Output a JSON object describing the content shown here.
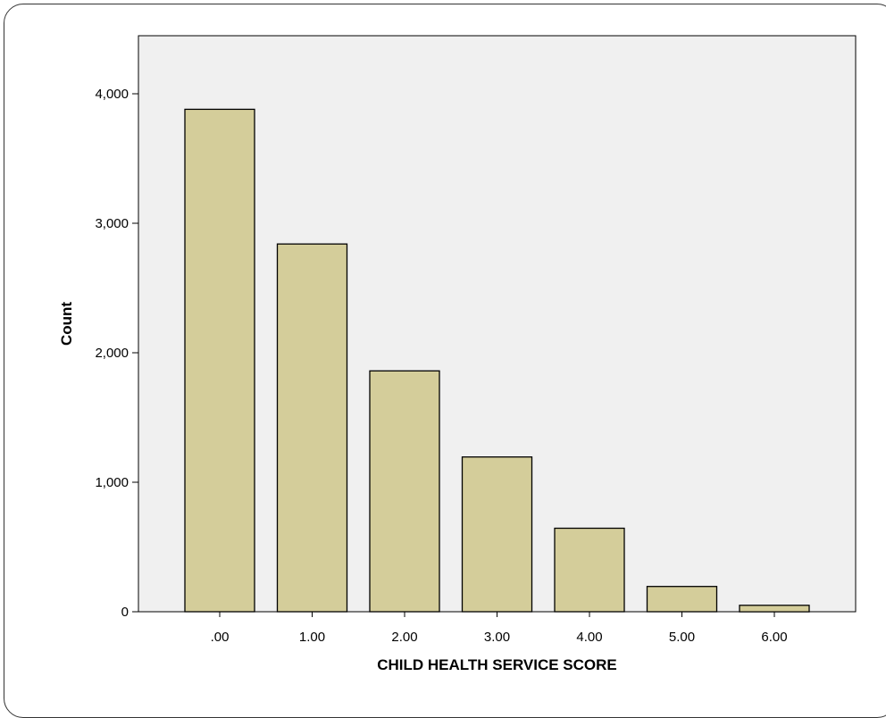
{
  "chart_data": {
    "type": "bar",
    "categories": [
      ".00",
      "1.00",
      "2.00",
      "3.00",
      "4.00",
      "5.00",
      "6.00"
    ],
    "values": [
      3880,
      2840,
      1860,
      1195,
      645,
      195,
      50
    ],
    "title": "",
    "xlabel": "CHILD HEALTH SERVICE SCORE",
    "ylabel": "Count",
    "ylim": [
      0,
      4400
    ],
    "yticks": [
      0,
      1000,
      2000,
      3000,
      4000
    ],
    "ytick_labels": [
      "0",
      "1,000",
      "2,000",
      "3,000",
      "4,000"
    ],
    "grid": false,
    "legend": "none",
    "colors": {
      "bar_fill": "#d4cd9a",
      "bar_stroke": "#000000",
      "plot_background": "#f0f0f0"
    }
  }
}
